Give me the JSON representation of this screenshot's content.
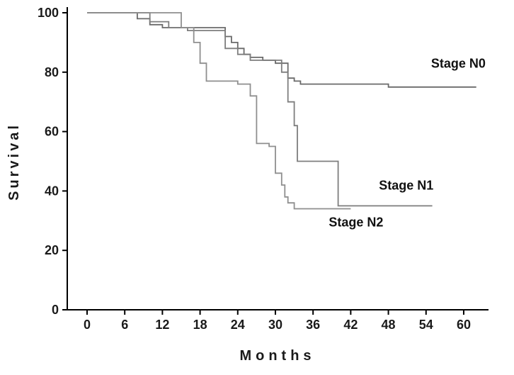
{
  "page": {
    "background": "#ffffff"
  },
  "chart_data": {
    "type": "line",
    "subtype": "kaplan-meier-step",
    "title": "",
    "xlabel": "Months",
    "ylabel": "Survival",
    "xlim": [
      0,
      60
    ],
    "ylim": [
      0,
      100
    ],
    "xticks": [
      0,
      6,
      12,
      18,
      24,
      30,
      36,
      42,
      48,
      54,
      60
    ],
    "yticks": [
      0,
      20,
      40,
      60,
      80,
      100
    ],
    "grid": false,
    "legend_position": "inline-annotations",
    "axis_color": "#000000",
    "series": [
      {
        "name": "Stage N0",
        "color": "#6a6a6a",
        "points": [
          [
            0,
            100
          ],
          [
            8,
            100
          ],
          [
            8,
            98
          ],
          [
            10,
            98
          ],
          [
            10,
            96
          ],
          [
            12,
            96
          ],
          [
            12,
            95
          ],
          [
            22,
            95
          ],
          [
            22,
            92
          ],
          [
            23,
            92
          ],
          [
            23,
            90
          ],
          [
            24,
            90
          ],
          [
            24,
            88
          ],
          [
            25,
            88
          ],
          [
            25,
            86
          ],
          [
            26,
            86
          ],
          [
            26,
            85
          ],
          [
            28,
            85
          ],
          [
            28,
            84
          ],
          [
            30,
            84
          ],
          [
            30,
            83
          ],
          [
            32,
            83
          ],
          [
            32,
            78
          ],
          [
            33,
            78
          ],
          [
            33,
            77
          ],
          [
            34,
            77
          ],
          [
            34,
            76
          ],
          [
            48,
            76
          ],
          [
            48,
            75
          ],
          [
            62,
            75
          ]
        ]
      },
      {
        "name": "Stage N1",
        "color": "#7e7e7e",
        "points": [
          [
            0,
            100
          ],
          [
            10,
            100
          ],
          [
            10,
            97
          ],
          [
            13,
            97
          ],
          [
            13,
            95
          ],
          [
            16,
            95
          ],
          [
            16,
            94
          ],
          [
            22,
            94
          ],
          [
            22,
            88
          ],
          [
            24,
            88
          ],
          [
            24,
            86
          ],
          [
            26,
            86
          ],
          [
            26,
            84
          ],
          [
            31,
            84
          ],
          [
            31,
            80
          ],
          [
            32,
            80
          ],
          [
            32,
            70
          ],
          [
            33,
            70
          ],
          [
            33,
            62
          ],
          [
            33.5,
            62
          ],
          [
            33.5,
            50
          ],
          [
            40,
            50
          ],
          [
            40,
            35
          ],
          [
            55,
            35
          ]
        ]
      },
      {
        "name": "Stage N2",
        "color": "#8f8f8f",
        "points": [
          [
            0,
            100
          ],
          [
            15,
            100
          ],
          [
            15,
            95
          ],
          [
            17,
            95
          ],
          [
            17,
            90
          ],
          [
            18,
            90
          ],
          [
            18,
            83
          ],
          [
            19,
            83
          ],
          [
            19,
            77
          ],
          [
            24,
            77
          ],
          [
            24,
            76
          ],
          [
            26,
            76
          ],
          [
            26,
            72
          ],
          [
            27,
            72
          ],
          [
            27,
            56
          ],
          [
            29,
            56
          ],
          [
            29,
            55
          ],
          [
            30,
            55
          ],
          [
            30,
            46
          ],
          [
            31,
            46
          ],
          [
            31,
            42
          ],
          [
            31.5,
            42
          ],
          [
            31.5,
            38
          ],
          [
            32,
            38
          ],
          [
            32,
            36
          ],
          [
            33,
            36
          ],
          [
            33,
            34
          ],
          [
            42,
            34
          ]
        ]
      }
    ],
    "annotations": [
      {
        "text": "Stage N0",
        "x": 54.8,
        "y": 81.5
      },
      {
        "text": "Stage N1",
        "x": 46.5,
        "y": 40.5
      },
      {
        "text": "Stage N2",
        "x": 38.5,
        "y": 28
      }
    ]
  }
}
